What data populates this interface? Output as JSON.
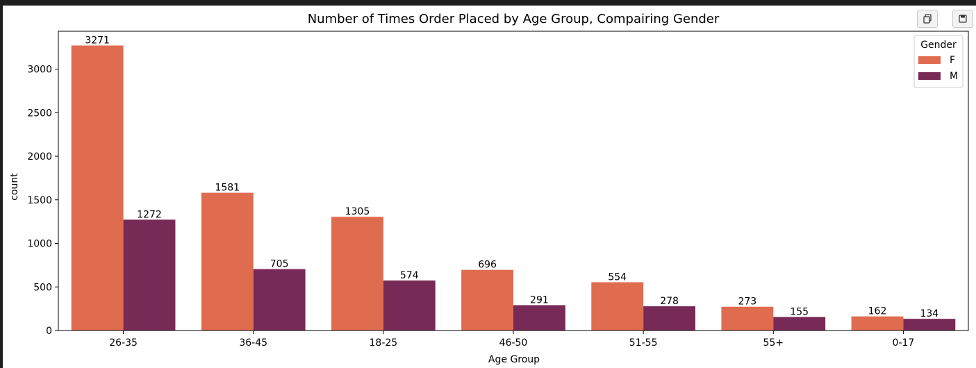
{
  "toolbar": {
    "copy_icon": "copy-icon",
    "save_icon": "floppy-disk-icon"
  },
  "chart_data": {
    "type": "bar",
    "title": "Number of Times Order Placed by Age Group, Compairing Gender",
    "xlabel": "Age Group",
    "ylabel": "count",
    "categories": [
      "26-35",
      "36-45",
      "18-25",
      "46-50",
      "51-55",
      "55+",
      "0-17"
    ],
    "series": [
      {
        "name": "F",
        "color": "#e06c50",
        "values": [
          3271,
          1581,
          1305,
          696,
          554,
          273,
          162
        ]
      },
      {
        "name": "M",
        "color": "#772a55",
        "values": [
          1272,
          705,
          574,
          291,
          278,
          155,
          134
        ]
      }
    ],
    "ylim": [
      0,
      3434.55
    ],
    "yticks": [
      0,
      500,
      1000,
      1500,
      2000,
      2500,
      3000
    ],
    "legend": {
      "title": "Gender",
      "placement": "upper-right"
    },
    "grid": false,
    "data_labels": true
  }
}
